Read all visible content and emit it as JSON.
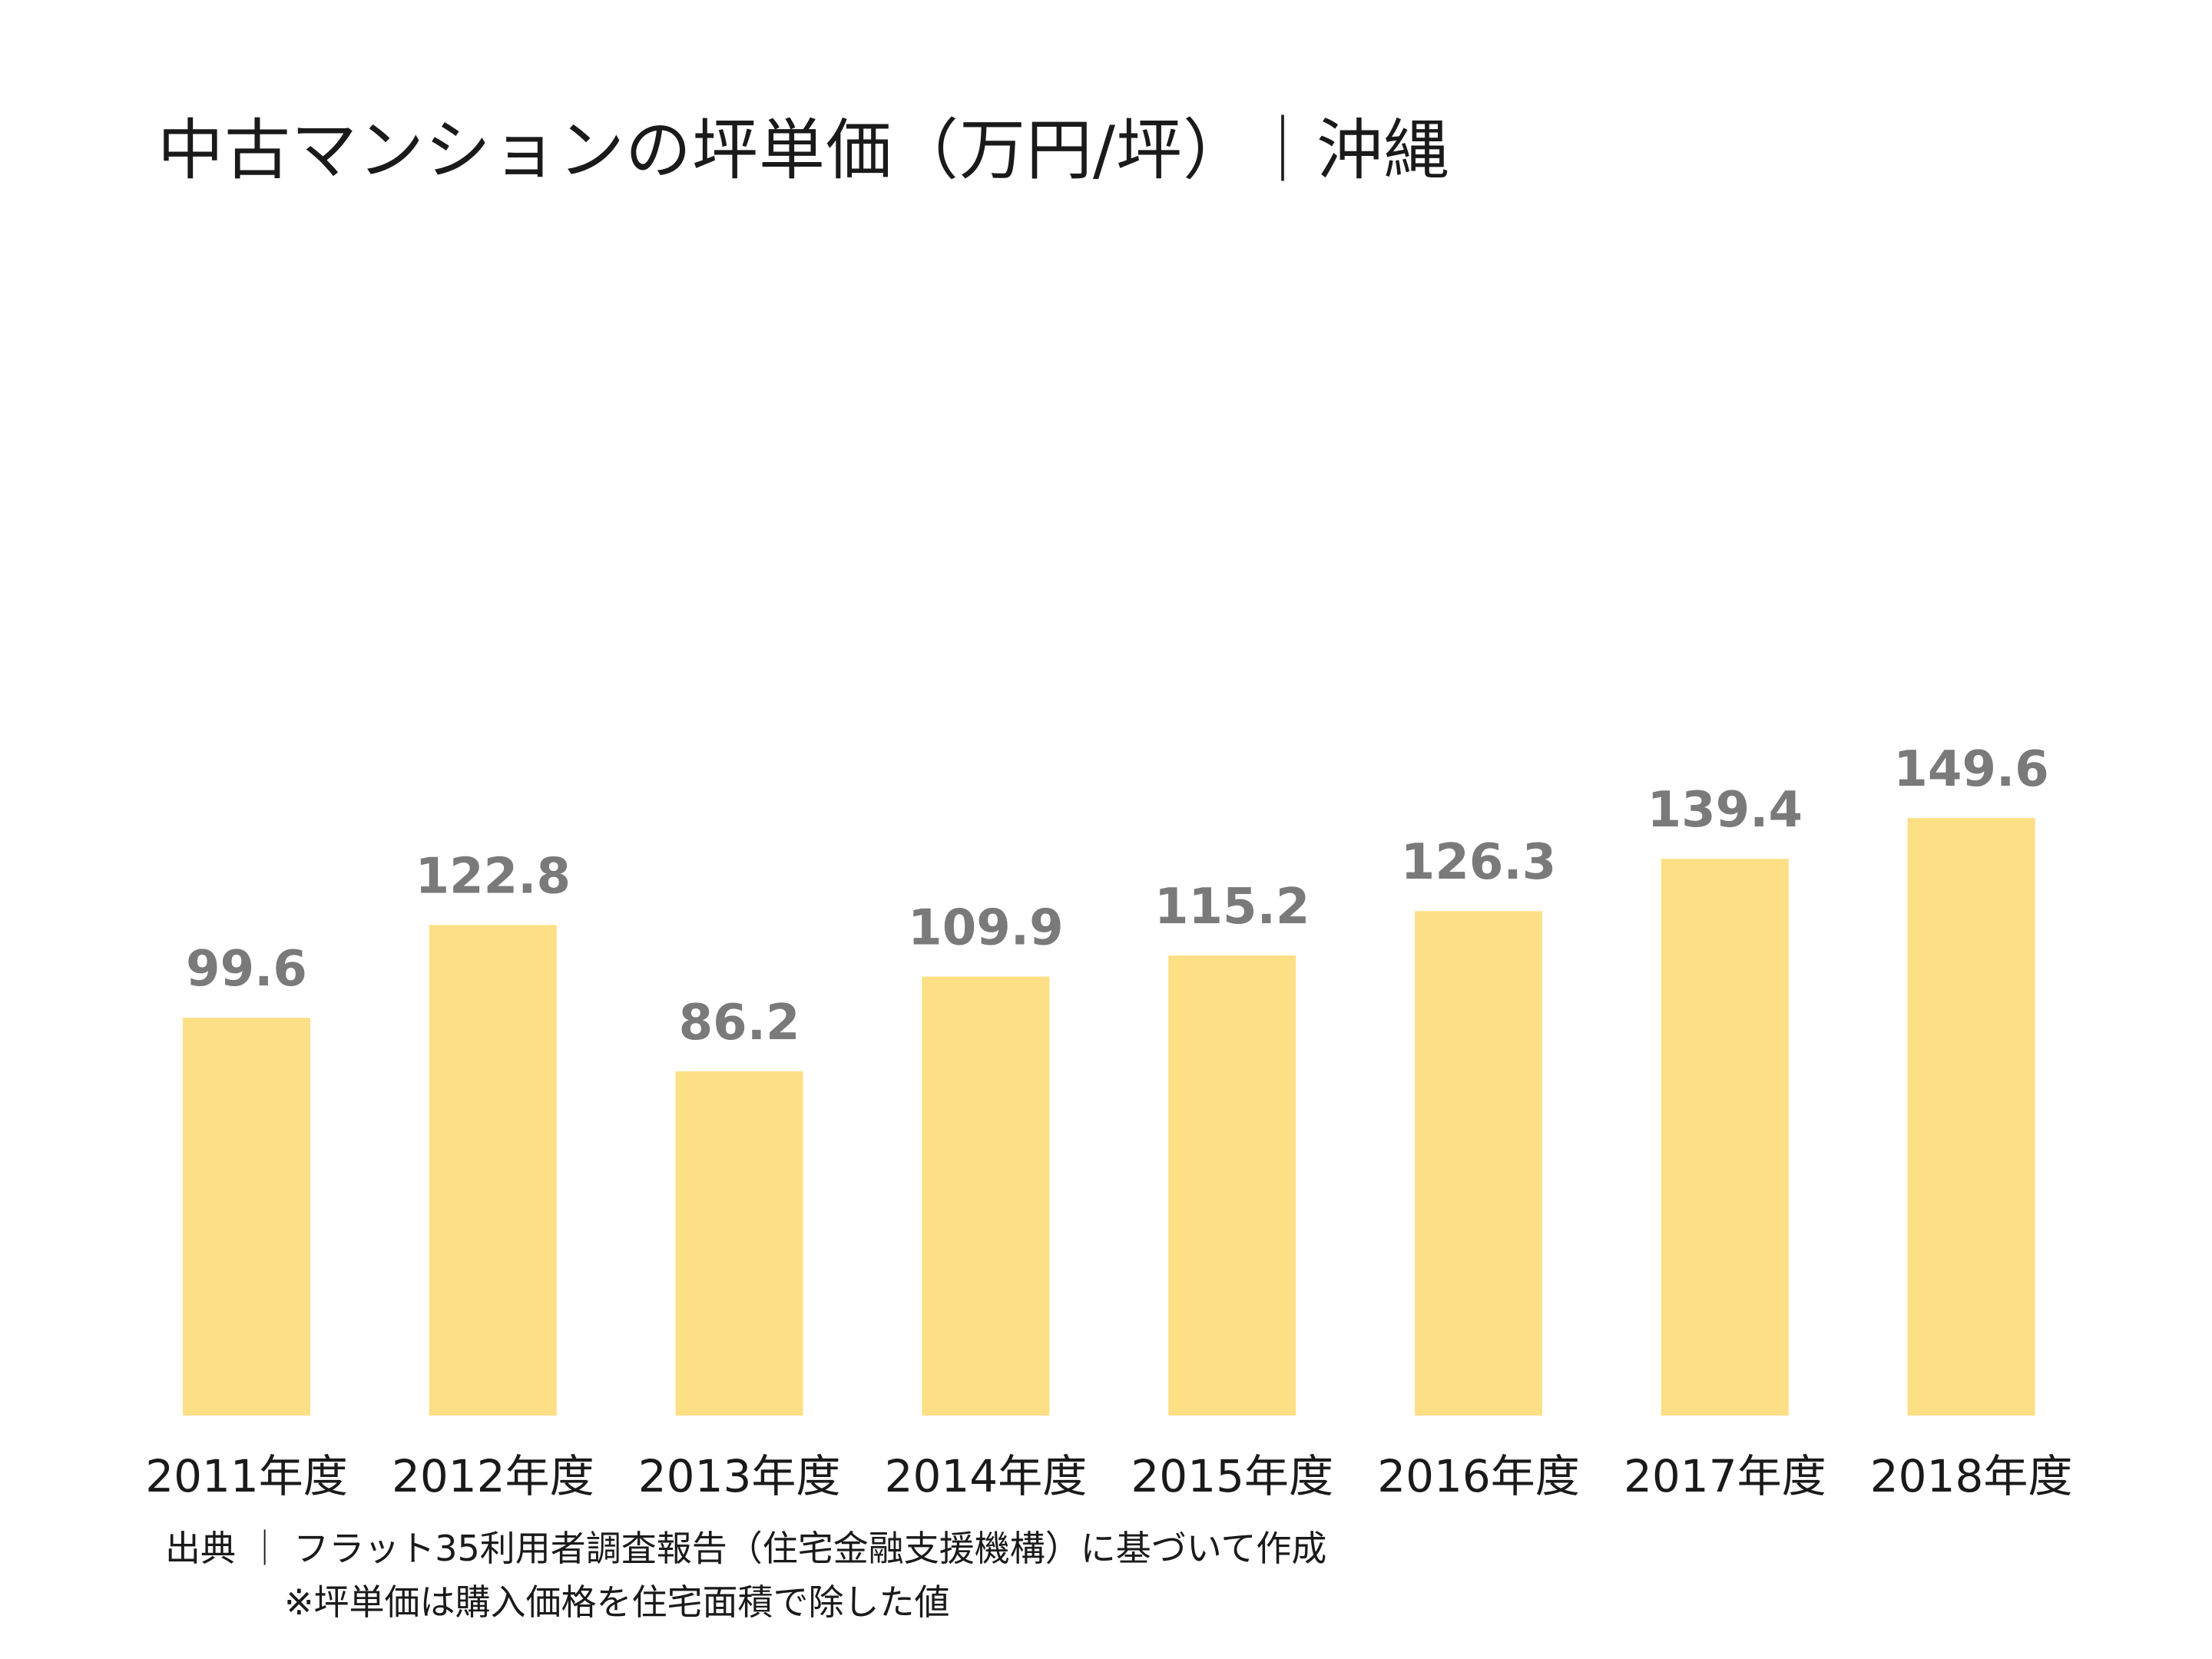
{
  "chart_data": {
    "type": "bar",
    "title": "中古マンションの坪単価（万円/坪）｜沖縄",
    "xlabel": "",
    "ylabel": "",
    "categories": [
      "2011年度",
      "2012年度",
      "2013年度",
      "2014年度",
      "2015年度",
      "2016年度",
      "2017年度",
      "2018年度"
    ],
    "values": [
      99.6,
      122.8,
      86.2,
      109.9,
      115.2,
      126.3,
      139.4,
      149.6
    ],
    "value_labels": [
      "99.6",
      "122.8",
      "86.2",
      "109.9",
      "115.2",
      "126.3",
      "139.4",
      "149.6"
    ],
    "ylim": [
      0,
      150
    ],
    "grid": false,
    "legend": "none",
    "bar_color": "#FDDF85",
    "value_label_color": "#7A7A7A"
  },
  "notes": {
    "source": "出典 ｜ フラット35利用者調査報告（住宅金融支援機構）に基づいて作成",
    "method": "※坪単価は購入価格を住宅面積で除した値"
  }
}
